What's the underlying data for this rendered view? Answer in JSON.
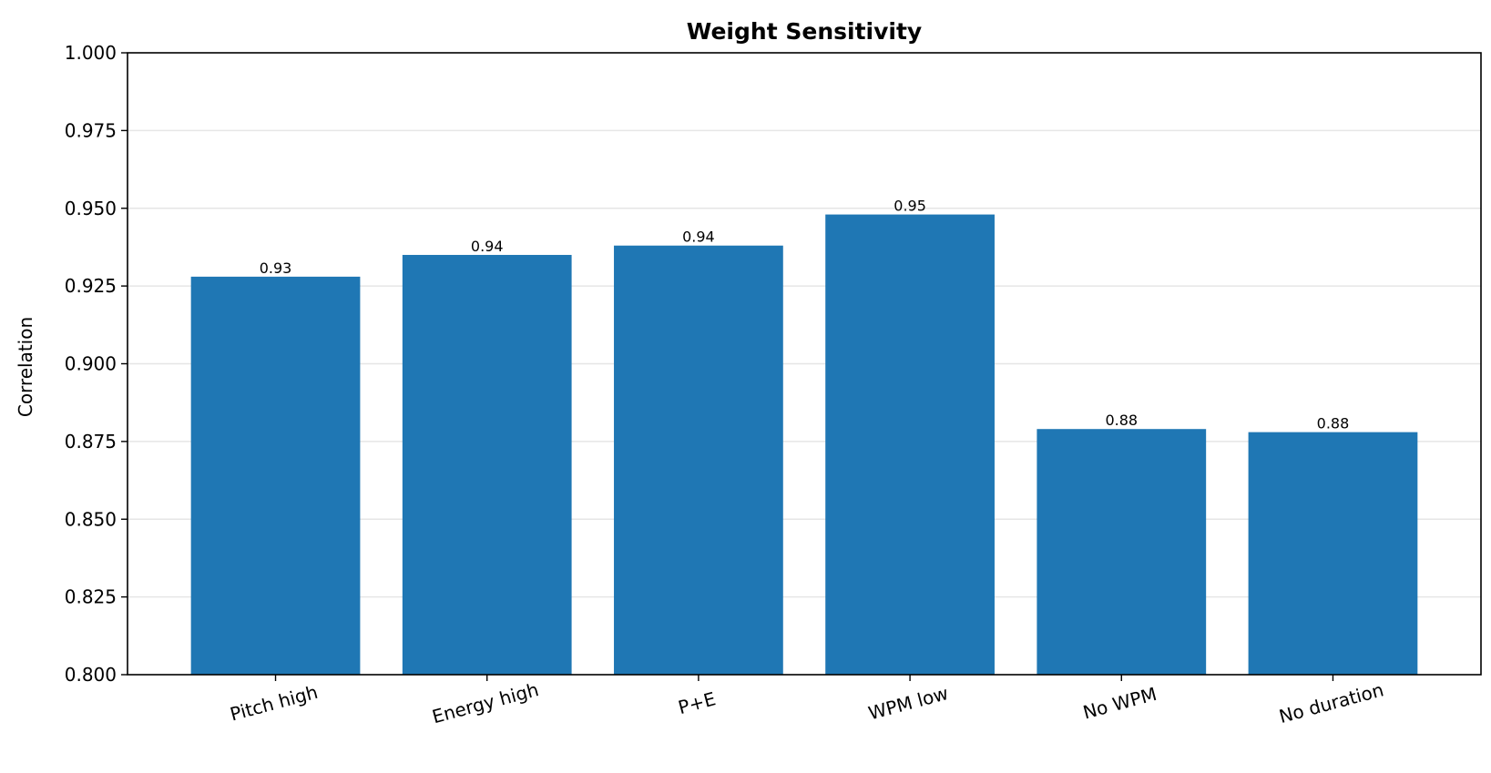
{
  "chart_data": {
    "type": "bar",
    "title": "Weight Sensitivity",
    "xlabel": "",
    "ylabel": "Correlation",
    "categories": [
      "Pitch high",
      "Energy high",
      "P+E",
      "WPM low",
      "No WPM",
      "No duration"
    ],
    "values": [
      0.928,
      0.935,
      0.938,
      0.948,
      0.879,
      0.878
    ],
    "value_labels": [
      "0.93",
      "0.94",
      "0.94",
      "0.95",
      "0.88",
      "0.88"
    ],
    "ylim": [
      0.8,
      1.0
    ],
    "yticks": [
      0.8,
      0.825,
      0.85,
      0.875,
      0.9,
      0.925,
      0.95,
      0.975,
      1.0
    ],
    "ytick_labels": [
      "0.800",
      "0.825",
      "0.850",
      "0.875",
      "0.900",
      "0.925",
      "0.950",
      "0.975",
      "1.000"
    ],
    "grid": "y",
    "bar_color": "#1f77b4",
    "grid_color": "#e6e6e6",
    "xtick_rotation": "slanted"
  }
}
